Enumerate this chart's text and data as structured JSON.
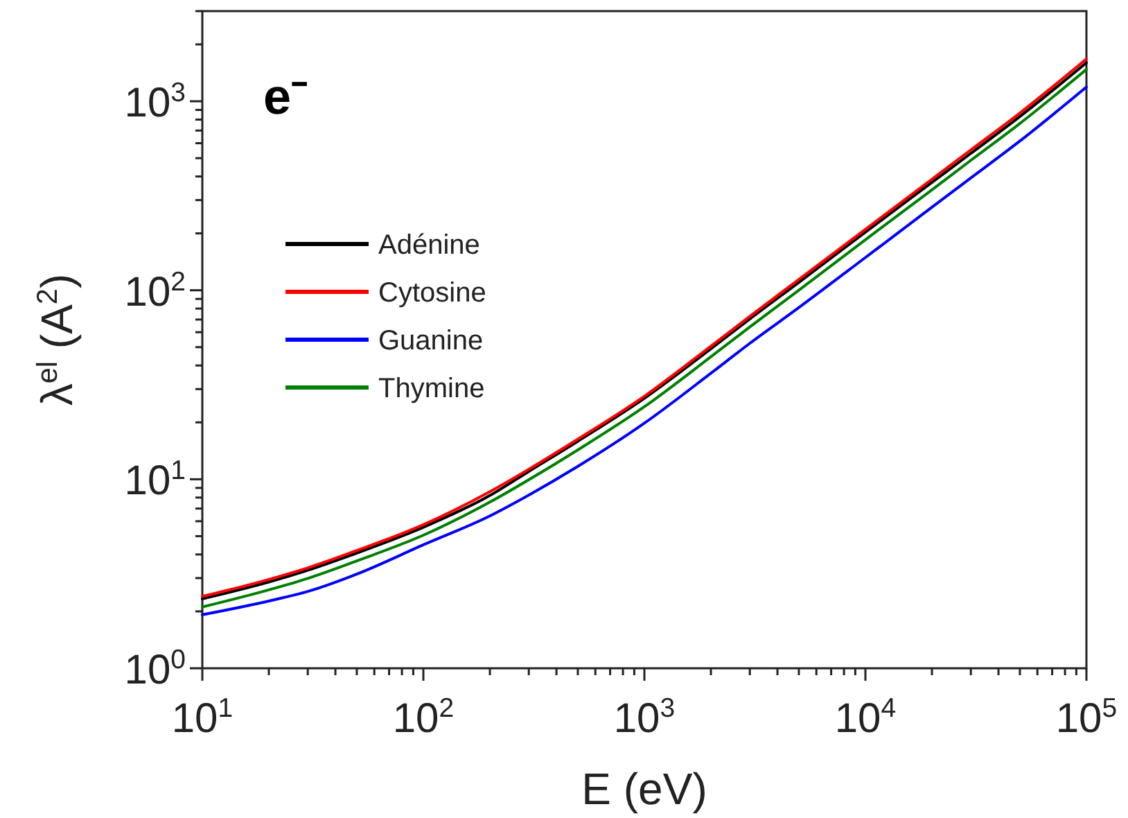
{
  "chart_data": {
    "type": "line",
    "xlabel": "E (eV)",
    "ylabel": "λ$^{el}$ (A$^{2}$)",
    "annotations": [
      "e⁻"
    ],
    "log": "xy",
    "legend": "top left",
    "grid": false,
    "marker": "none",
    "line_style": "solid",
    "x": [
      10,
      20,
      30,
      50,
      100,
      200,
      300,
      500,
      1000,
      2000,
      3000,
      5000,
      10000,
      20000,
      30000,
      50000,
      100000
    ],
    "xlim": [
      10,
      100000
    ],
    "xticks": [
      {
        "value": 10,
        "label": "10$^{1}$"
      },
      {
        "value": 20,
        "label": null
      },
      {
        "value": 30,
        "label": null
      },
      {
        "value": 40,
        "label": null
      },
      {
        "value": 50,
        "label": null
      },
      {
        "value": 60,
        "label": null
      },
      {
        "value": 70,
        "label": null
      },
      {
        "value": 80,
        "label": null
      },
      {
        "value": 90,
        "label": null
      },
      {
        "value": 100,
        "label": "10$^{2}$"
      },
      {
        "value": 200,
        "label": null
      },
      {
        "value": 300,
        "label": null
      },
      {
        "value": 400,
        "label": null
      },
      {
        "value": 500,
        "label": null
      },
      {
        "value": 600,
        "label": null
      },
      {
        "value": 700,
        "label": null
      },
      {
        "value": 800,
        "label": null
      },
      {
        "value": 900,
        "label": null
      },
      {
        "value": 1000,
        "label": "10$^{3}$"
      },
      {
        "value": 2000,
        "label": null
      },
      {
        "value": 3000,
        "label": null
      },
      {
        "value": 4000,
        "label": null
      },
      {
        "value": 5000,
        "label": null
      },
      {
        "value": 6000,
        "label": null
      },
      {
        "value": 7000,
        "label": null
      },
      {
        "value": 8000,
        "label": null
      },
      {
        "value": 9000,
        "label": null
      },
      {
        "value": 10000,
        "label": "10$^{4}$"
      },
      {
        "value": 20000,
        "label": null
      },
      {
        "value": 30000,
        "label": null
      },
      {
        "value": 40000,
        "label": null
      },
      {
        "value": 50000,
        "label": null
      },
      {
        "value": 60000,
        "label": null
      },
      {
        "value": 70000,
        "label": null
      },
      {
        "value": 80000,
        "label": null
      },
      {
        "value": 90000,
        "label": null
      },
      {
        "value": 100000,
        "label": "10$^{5}$"
      }
    ],
    "ylim": [
      1,
      3000
    ],
    "yticks": [
      {
        "value": 1,
        "label": "10$^{0}$"
      },
      {
        "value": 2,
        "label": null
      },
      {
        "value": 3,
        "label": null
      },
      {
        "value": 4,
        "label": null
      },
      {
        "value": 5,
        "label": null
      },
      {
        "value": 6,
        "label": null
      },
      {
        "value": 7,
        "label": null
      },
      {
        "value": 8,
        "label": null
      },
      {
        "value": 9,
        "label": null
      },
      {
        "value": 10,
        "label": "10$^{1}$"
      },
      {
        "value": 20,
        "label": null
      },
      {
        "value": 30,
        "label": null
      },
      {
        "value": 40,
        "label": null
      },
      {
        "value": 50,
        "label": null
      },
      {
        "value": 60,
        "label": null
      },
      {
        "value": 70,
        "label": null
      },
      {
        "value": 80,
        "label": null
      },
      {
        "value": 90,
        "label": null
      },
      {
        "value": 100,
        "label": "10$^{2}$"
      },
      {
        "value": 200,
        "label": null
      },
      {
        "value": 300,
        "label": null
      },
      {
        "value": 400,
        "label": null
      },
      {
        "value": 500,
        "label": null
      },
      {
        "value": 600,
        "label": null
      },
      {
        "value": 700,
        "label": null
      },
      {
        "value": 800,
        "label": null
      },
      {
        "value": 900,
        "label": null
      },
      {
        "value": 1000,
        "label": "10$^{3}$"
      },
      {
        "value": 2000,
        "label": null
      },
      {
        "value": 3000,
        "label": null
      }
    ],
    "series": [
      {
        "name": "Adénine",
        "color": "#000000",
        "values": [
          2.33,
          2.86,
          3.3,
          4.07,
          5.57,
          8.2,
          11.0,
          15.9,
          26.8,
          49,
          70.5,
          110,
          203,
          372,
          530,
          830,
          1600
        ]
      },
      {
        "name": "Cytosine",
        "color": "#ff0000",
        "values": [
          2.4,
          2.95,
          3.4,
          4.2,
          5.75,
          8.6,
          11.3,
          16.3,
          27.5,
          50.6,
          72.8,
          114,
          210,
          387,
          553,
          867,
          1675
        ]
      },
      {
        "name": "Guanine",
        "color": "#0000ff",
        "values": [
          1.92,
          2.27,
          2.55,
          3.15,
          4.5,
          6.4,
          8.25,
          11.7,
          19.8,
          36.4,
          52.4,
          81,
          149,
          275,
          393,
          616,
          1190
        ]
      },
      {
        "name": "Thymine",
        "color": "#008000",
        "values": [
          2.11,
          2.6,
          2.99,
          3.7,
          5.06,
          7.57,
          9.94,
          14.3,
          24.2,
          44.5,
          64,
          100,
          185,
          340,
          487,
          763,
          1474
        ]
      }
    ]
  }
}
